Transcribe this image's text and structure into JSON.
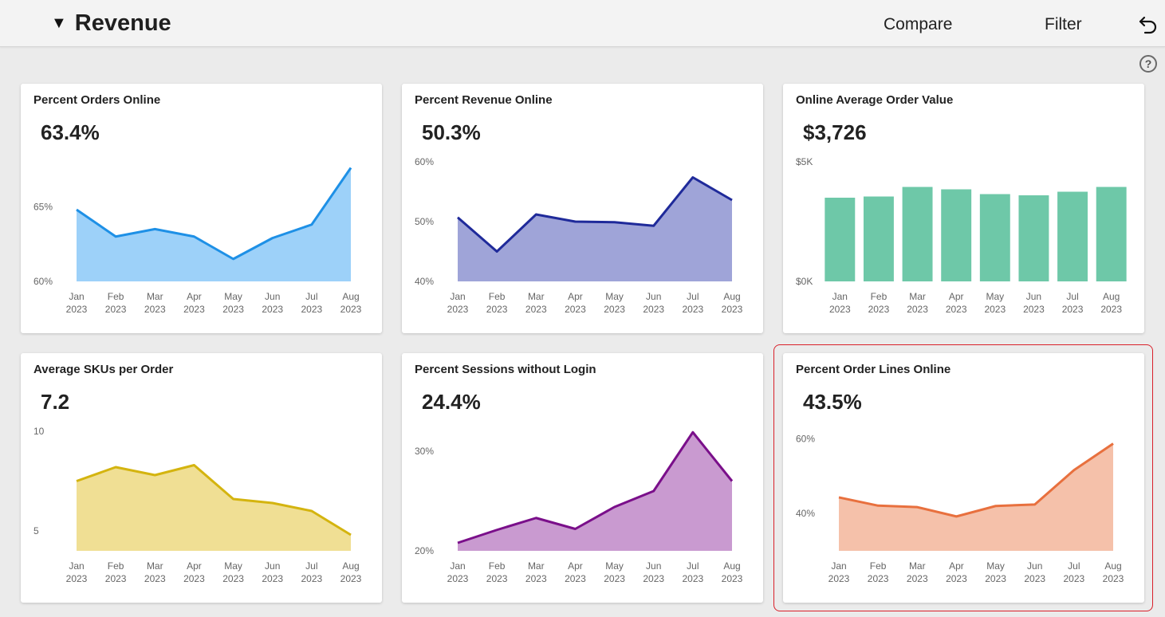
{
  "header": {
    "title": "Revenue",
    "compare_label": "Compare",
    "filter_label": "Filter"
  },
  "cards": [
    {
      "title": "Percent Orders Online",
      "value": "63.4%",
      "color": "#1e90e6",
      "fill": "#9dd1f9",
      "chart_data": {
        "type": "area",
        "x": [
          "Jan 2023",
          "Feb 2023",
          "Mar 2023",
          "Apr 2023",
          "May 2023",
          "Jun 2023",
          "Jul 2023",
          "Aug 2023"
        ],
        "y_ticks": [
          "65%",
          "60%"
        ],
        "ylim": [
          60,
          68
        ],
        "values": [
          64.8,
          63.0,
          63.5,
          63.0,
          61.5,
          62.9,
          63.8,
          67.6
        ]
      }
    },
    {
      "title": "Percent Revenue Online",
      "value": "50.3%",
      "color": "#1f2a9a",
      "fill": "#9fa4d8",
      "chart_data": {
        "type": "area",
        "x": [
          "Jan 2023",
          "Feb 2023",
          "Mar 2023",
          "Apr 2023",
          "May 2023",
          "Jun 2023",
          "Jul 2023",
          "Aug 2023"
        ],
        "y_ticks": [
          "60%",
          "50%",
          "40%"
        ],
        "ylim": [
          40,
          60
        ],
        "values": [
          50.7,
          45.0,
          51.2,
          50.0,
          49.9,
          49.3,
          57.4,
          53.6
        ]
      }
    },
    {
      "title": "Online Average Order Value",
      "value": "$3,726",
      "color": "#6ec8a8",
      "fill": "#6ec8a8",
      "chart_data": {
        "type": "bar",
        "x": [
          "Jan 2023",
          "Feb 2023",
          "Mar 2023",
          "Apr 2023",
          "May 2023",
          "Jun 2023",
          "Jul 2023",
          "Aug 2023"
        ],
        "y_ticks": [
          "$5K",
          "$0K"
        ],
        "ylim": [
          0,
          5000
        ],
        "values": [
          3500,
          3550,
          3950,
          3850,
          3650,
          3600,
          3750,
          3950
        ]
      }
    },
    {
      "title": "Average SKUs per Order",
      "value": "7.2",
      "color": "#d4b40f",
      "fill": "#f0df94",
      "chart_data": {
        "type": "area",
        "x": [
          "Jan 2023",
          "Feb 2023",
          "Mar 2023",
          "Apr 2023",
          "May 2023",
          "Jun 2023",
          "Jul 2023",
          "Aug 2023"
        ],
        "y_ticks": [
          "10",
          "5"
        ],
        "ylim": [
          4.0,
          10.0
        ],
        "values": [
          7.5,
          8.2,
          7.8,
          8.3,
          6.6,
          6.4,
          6.0,
          4.8
        ]
      }
    },
    {
      "title": "Percent Sessions without Login",
      "value": "24.4%",
      "color": "#7a0f8a",
      "fill": "#c99ad0",
      "chart_data": {
        "type": "area",
        "x": [
          "Jan 2023",
          "Feb 2023",
          "Mar 2023",
          "Apr 2023",
          "May 2023",
          "Jun 2023",
          "Jul 2023",
          "Aug 2023"
        ],
        "y_ticks": [
          "30%",
          "20%"
        ],
        "ylim": [
          20,
          32
        ],
        "values": [
          20.8,
          22.1,
          23.3,
          22.2,
          24.4,
          26.0,
          31.9,
          27.0
        ]
      }
    },
    {
      "title": "Percent Order Lines Online",
      "value": "43.5%",
      "color": "#e8703e",
      "fill": "#f5c1aa",
      "chart_data": {
        "type": "area",
        "x": [
          "Jan 2023",
          "Feb 2023",
          "Mar 2023",
          "Apr 2023",
          "May 2023",
          "Jun 2023",
          "Jul 2023",
          "Aug 2023"
        ],
        "y_ticks": [
          "60%",
          "40%"
        ],
        "ylim": [
          30,
          62
        ],
        "values": [
          44.3,
          42.1,
          41.7,
          39.2,
          42.0,
          42.4,
          51.6,
          58.7
        ]
      }
    }
  ]
}
